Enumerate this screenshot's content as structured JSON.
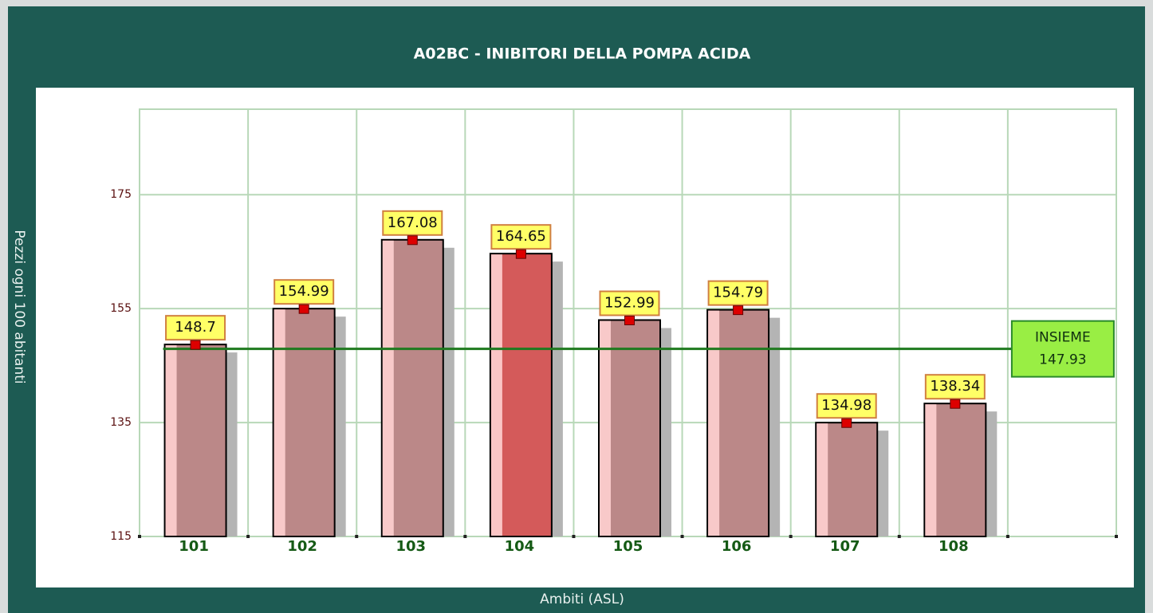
{
  "chart_data": {
    "type": "bar",
    "title": "A02BC - INIBITORI DELLA POMPA ACIDA",
    "y_label": "Pezzi ogni 100 abitanti",
    "x_label": "Ambiti (ASL)",
    "categories": [
      "101",
      "102",
      "103",
      "104",
      "105",
      "106",
      "107",
      "108"
    ],
    "values": [
      148.7,
      154.99,
      167.08,
      164.65,
      152.99,
      154.79,
      134.98,
      138.34
    ],
    "colors": [
      "#bb8888",
      "#bb8888",
      "#bb8888",
      "#d45a5a",
      "#bb8888",
      "#bb8888",
      "#bb8888",
      "#bb8888"
    ],
    "reference": {
      "label": "INSIEME",
      "value": 147.93,
      "color": "#1f7a1f"
    },
    "ylim": [
      115,
      190
    ],
    "yticks": [
      115,
      135,
      155,
      175
    ],
    "grid": true
  }
}
